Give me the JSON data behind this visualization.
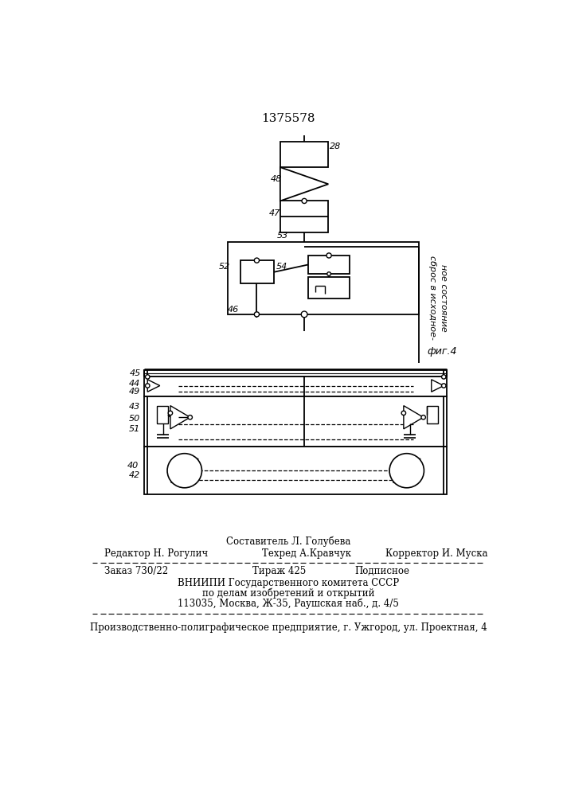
{
  "title": "1375578",
  "background_color": "#ffffff",
  "line_color": "#000000",
  "fig_label": "фиг.4",
  "reset_label_line1": "сброс в исходное-",
  "reset_label_line2": "ное состояние",
  "footer": {
    "sestavitel": "Составитель Л. Голубева",
    "redaktor": "Редактор Н. Рогулич",
    "tekhred": "Техред А.Кравчук",
    "korrektor": "Корректор И. Муска",
    "zakaz": "Заказ 730/22",
    "tirazh": "Тираж 425",
    "podpisnoe": "Подписное",
    "vniip1": "ВНИИПИ Государственного комитета СССР",
    "vniip2": "по делам изобретений и открытий",
    "vniip3": "113035, Москва, Ж-35, Раушская наб., д. 4/5",
    "proizvod": "Производственно-полиграфическое предприятие, г. Ужгород, ул. Проектная, 4"
  }
}
